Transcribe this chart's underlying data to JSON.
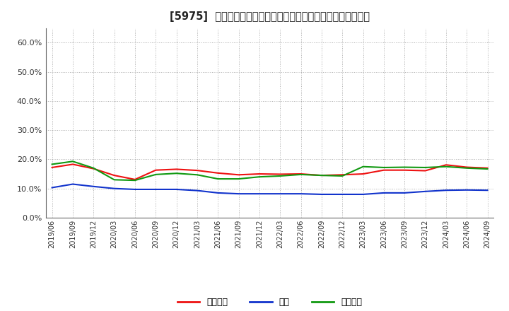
{
  "title": "[5975]  売上債権、在庫、買入債務の総資産に対する比率の推移",
  "title_fontsize": 10.5,
  "background_color": "#ffffff",
  "plot_bg_color": "#ffffff",
  "grid_color": "#999999",
  "ylim": [
    0.0,
    0.65
  ],
  "yticks": [
    0.0,
    0.1,
    0.2,
    0.3,
    0.4,
    0.5,
    0.6
  ],
  "x_labels": [
    "2019/06",
    "2019/09",
    "2019/12",
    "2020/03",
    "2020/06",
    "2020/09",
    "2020/12",
    "2021/03",
    "2021/06",
    "2021/09",
    "2021/12",
    "2022/03",
    "2022/06",
    "2022/09",
    "2022/12",
    "2023/03",
    "2023/06",
    "2023/09",
    "2023/12",
    "2024/03",
    "2024/06",
    "2024/09"
  ],
  "series_order": [
    "売上債権",
    "在庫",
    "買入債務"
  ],
  "series": {
    "売上債権": {
      "color": "#ee1111",
      "values": [
        0.172,
        0.183,
        0.168,
        0.145,
        0.131,
        0.163,
        0.166,
        0.162,
        0.153,
        0.147,
        0.15,
        0.149,
        0.15,
        0.145,
        0.147,
        0.15,
        0.163,
        0.163,
        0.161,
        0.181,
        0.173,
        0.17
      ]
    },
    "在庫": {
      "color": "#1133cc",
      "values": [
        0.103,
        0.115,
        0.107,
        0.1,
        0.097,
        0.097,
        0.097,
        0.093,
        0.085,
        0.082,
        0.082,
        0.082,
        0.082,
        0.08,
        0.08,
        0.08,
        0.085,
        0.085,
        0.09,
        0.094,
        0.095,
        0.094
      ]
    },
    "買入債務": {
      "color": "#119911",
      "values": [
        0.183,
        0.193,
        0.17,
        0.13,
        0.128,
        0.148,
        0.152,
        0.147,
        0.133,
        0.133,
        0.14,
        0.143,
        0.148,
        0.145,
        0.143,
        0.175,
        0.172,
        0.173,
        0.172,
        0.175,
        0.17,
        0.167
      ]
    }
  },
  "legend_labels": [
    "売上債権",
    "在庫",
    "買入債務"
  ],
  "legend_colors": [
    "#ee1111",
    "#1133cc",
    "#119911"
  ]
}
